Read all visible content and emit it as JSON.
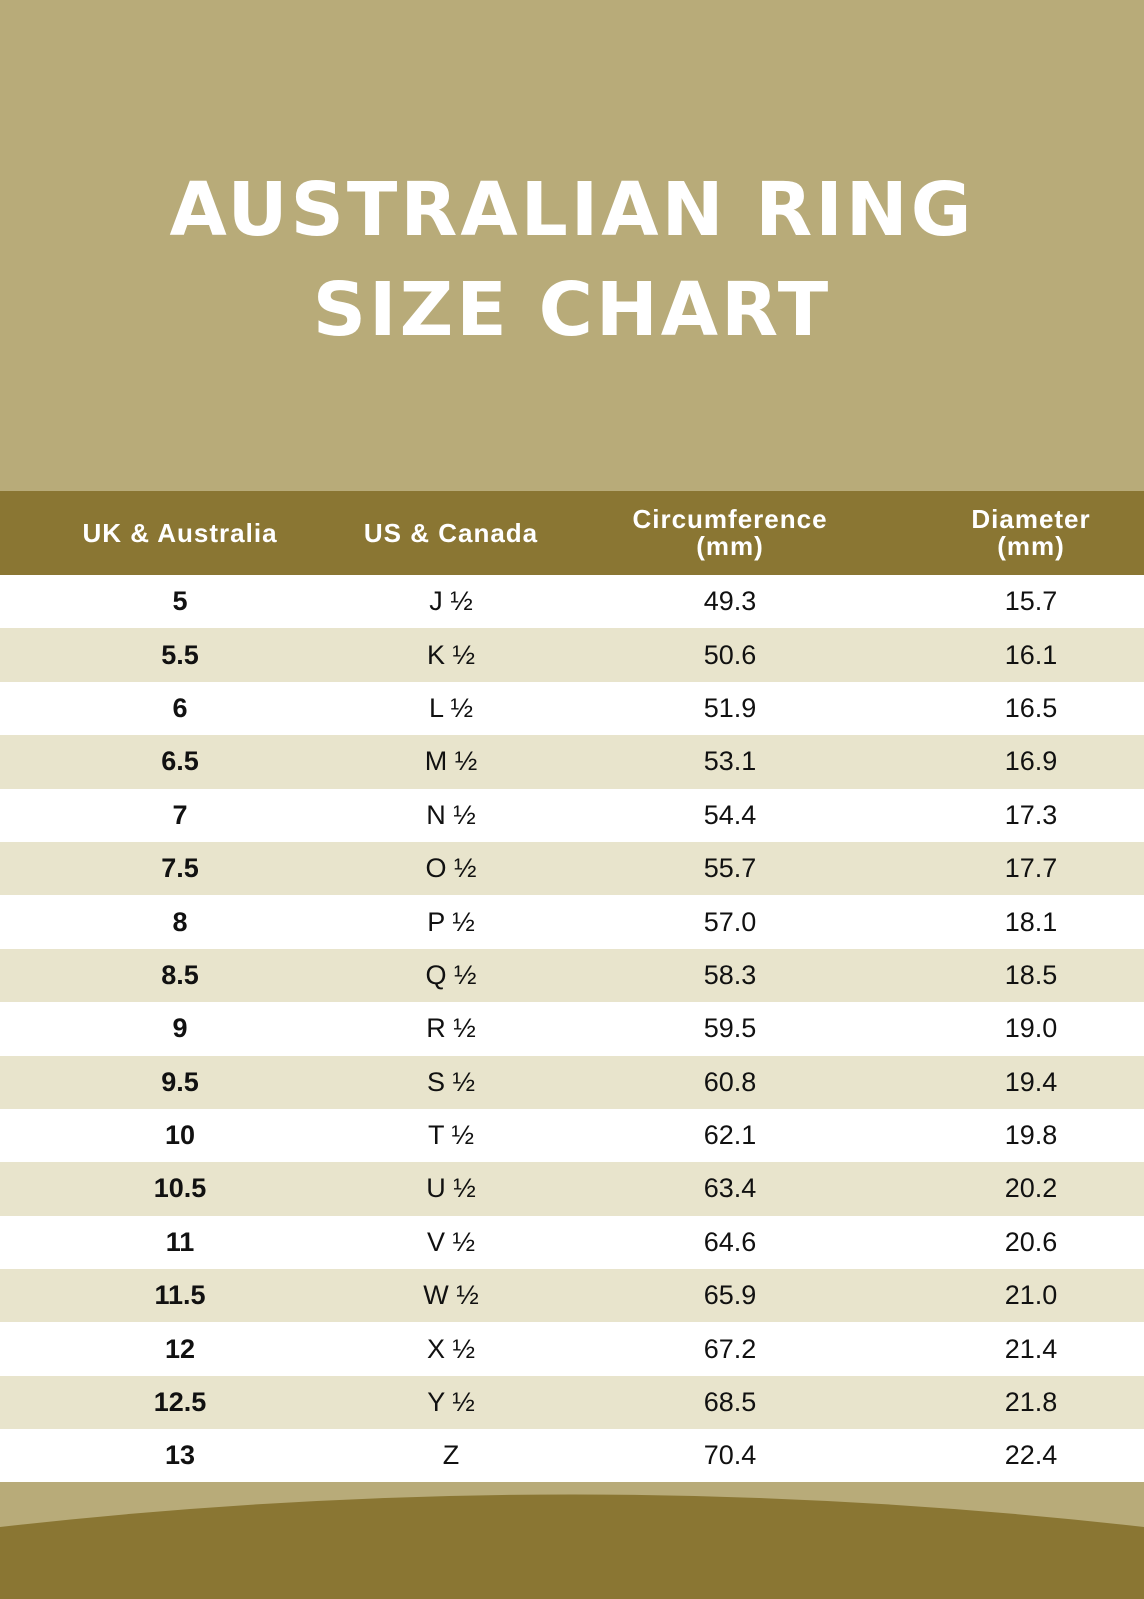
{
  "title": {
    "line1": "AUSTRALIAN RING",
    "line2": "SIZE CHART"
  },
  "table": {
    "headers": [
      {
        "line1": "UK & Australia",
        "line2": ""
      },
      {
        "line1": "US & Canada",
        "line2": ""
      },
      {
        "line1": "Circumference",
        "line2": "(mm)"
      },
      {
        "line1": "Diameter",
        "line2": "(mm)"
      }
    ],
    "rows": [
      [
        "5",
        "J ½",
        "49.3",
        "15.7"
      ],
      [
        "5.5",
        "K ½",
        "50.6",
        "16.1"
      ],
      [
        "6",
        "L ½",
        "51.9",
        "16.5"
      ],
      [
        "6.5",
        "M ½",
        "53.1",
        "16.9"
      ],
      [
        "7",
        "N ½",
        "54.4",
        "17.3"
      ],
      [
        "7.5",
        "O ½",
        "55.7",
        "17.7"
      ],
      [
        "8",
        "P ½",
        "57.0",
        "18.1"
      ],
      [
        "8.5",
        "Q ½",
        "58.3",
        "18.5"
      ],
      [
        "9",
        "R ½",
        "59.5",
        "19.0"
      ],
      [
        "9.5",
        "S ½",
        "60.8",
        "19.4"
      ],
      [
        "10",
        "T ½",
        "62.1",
        "19.8"
      ],
      [
        "10.5",
        "U ½",
        "63.4",
        "20.2"
      ],
      [
        "11",
        "V ½",
        "64.6",
        "20.6"
      ],
      [
        "11.5",
        "W ½",
        "65.9",
        "21.0"
      ],
      [
        "12",
        "X ½",
        "67.2",
        "21.4"
      ],
      [
        "12.5",
        "Y ½",
        "68.5",
        "21.8"
      ],
      [
        "13",
        "Z",
        "70.4",
        "22.4"
      ]
    ]
  },
  "colors": {
    "background": "#b8ab79",
    "header": "#8a7633",
    "stripe": "#e8e4cc"
  }
}
